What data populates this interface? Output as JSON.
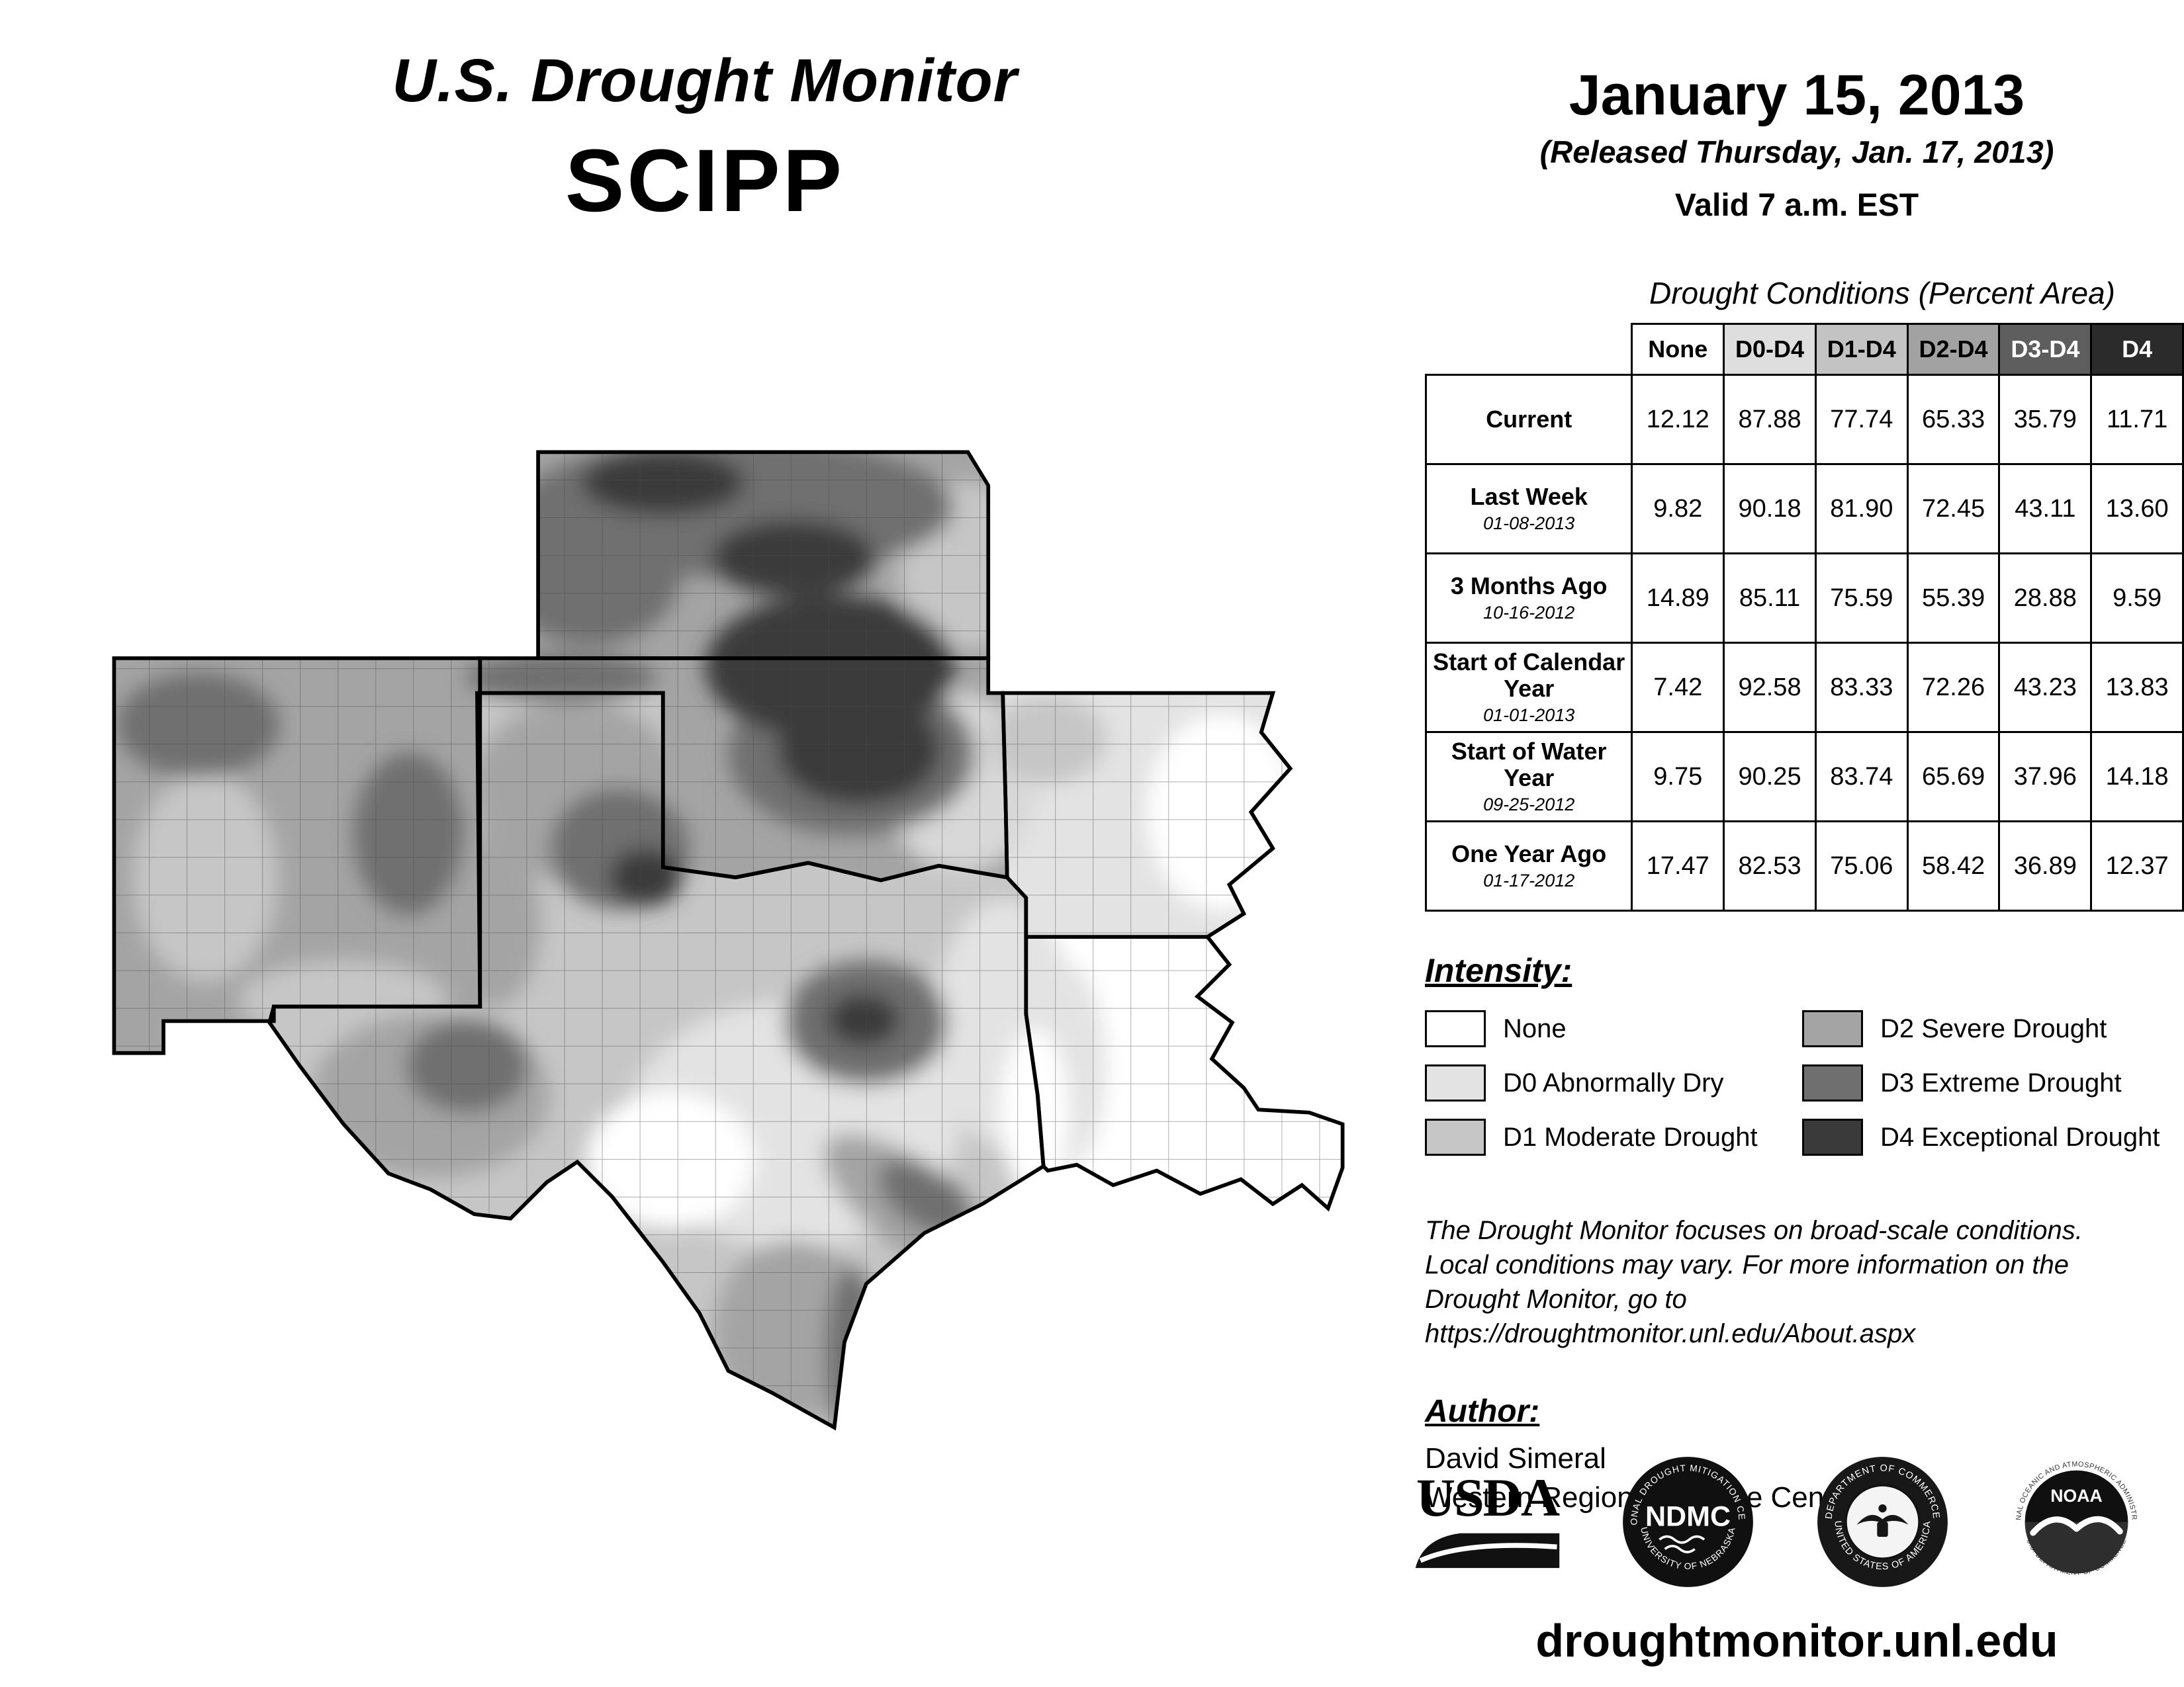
{
  "header": {
    "title_line1": "U.S. Drought Monitor",
    "title_line2": "SCIPP",
    "date": "January 15, 2013",
    "released": "(Released Thursday, Jan. 17, 2013)",
    "valid": "Valid 7 a.m. EST"
  },
  "table": {
    "title": "Drought Conditions (Percent Area)",
    "columns": [
      "None",
      "D0-D4",
      "D1-D4",
      "D2-D4",
      "D3-D4",
      "D4"
    ],
    "header_colors": [
      "#ffffff",
      "#dedede",
      "#c3c3c3",
      "#a2a2a2",
      "#5e5e5e",
      "#2b2b2b"
    ],
    "header_text_colors": [
      "#000000",
      "#000000",
      "#000000",
      "#000000",
      "#ffffff",
      "#ffffff"
    ],
    "rows": [
      {
        "label": "Current",
        "sublabel": "",
        "values": [
          "12.12",
          "87.88",
          "77.74",
          "65.33",
          "35.79",
          "11.71"
        ]
      },
      {
        "label": "Last Week",
        "sublabel": "01-08-2013",
        "values": [
          "9.82",
          "90.18",
          "81.90",
          "72.45",
          "43.11",
          "13.60"
        ]
      },
      {
        "label": "3 Months Ago",
        "sublabel": "10-16-2012",
        "values": [
          "14.89",
          "85.11",
          "75.59",
          "55.39",
          "28.88",
          "9.59"
        ]
      },
      {
        "label": "Start of Calendar Year",
        "sublabel": "01-01-2013",
        "values": [
          "7.42",
          "92.58",
          "83.33",
          "72.26",
          "43.23",
          "13.83"
        ]
      },
      {
        "label": "Start of Water Year",
        "sublabel": "09-25-2012",
        "values": [
          "9.75",
          "90.25",
          "83.74",
          "65.69",
          "37.96",
          "14.18"
        ]
      },
      {
        "label": "One Year Ago",
        "sublabel": "01-17-2012",
        "values": [
          "17.47",
          "82.53",
          "75.06",
          "58.42",
          "36.89",
          "12.37"
        ]
      }
    ]
  },
  "legend": {
    "title": "Intensity:",
    "items": [
      {
        "label": "None",
        "color": "#ffffff"
      },
      {
        "label": "D0 Abnormally Dry",
        "color": "#e3e3e3"
      },
      {
        "label": "D1 Moderate Drought",
        "color": "#c6c6c6"
      },
      {
        "label": "D2 Severe Drought",
        "color": "#a4a4a4"
      },
      {
        "label": "D3 Extreme Drought",
        "color": "#6f6f6f"
      },
      {
        "label": "D4 Exceptional Drought",
        "color": "#3a3a3a"
      }
    ]
  },
  "disclaimer": {
    "line1": "The Drought Monitor focuses on broad-scale conditions.",
    "line2": "Local conditions may vary. For more information on the",
    "line3": "Drought Monitor, go to https://droughtmonitor.unl.edu/About.aspx"
  },
  "author": {
    "title": "Author:",
    "name": "David Simeral",
    "org": "Western Regional Climate Center"
  },
  "logos": {
    "usda": {
      "text": "USDA"
    },
    "ndmc": {
      "abbr": "NDMC",
      "ring_top": "NATIONAL DROUGHT MITIGATION CENTER",
      "ring_bottom": "UNIVERSITY OF NEBRASKA"
    },
    "commerce": {
      "ring_top": "DEPARTMENT OF COMMERCE",
      "ring_bottom": "UNITED STATES OF AMERICA"
    },
    "noaa": {
      "abbr": "NOAA",
      "ring_top": "NATIONAL OCEANIC AND ATMOSPHERIC ADMINISTRATION",
      "ring_bottom": "U.S. DEPARTMENT OF COMMERCE"
    }
  },
  "footer": {
    "url": "droughtmonitor.unl.edu"
  }
}
